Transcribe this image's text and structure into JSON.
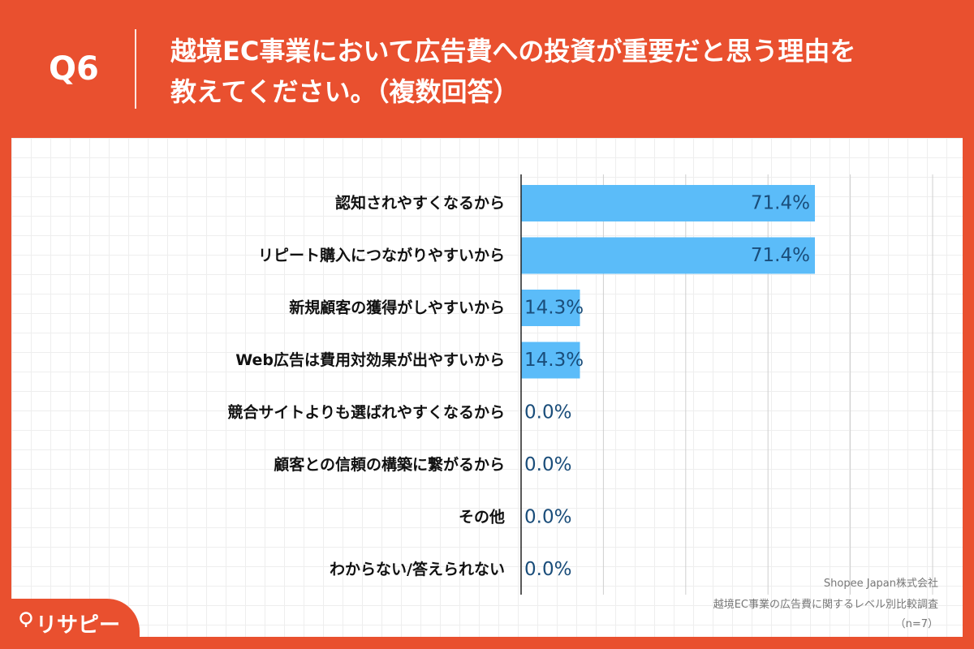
{
  "header": {
    "qnum": "Q6",
    "title_line1": "越境EC事業において広告費への投資が重要だと思う理由を",
    "title_line2": "教えてください。（複数回答）"
  },
  "footer": {
    "company": "Shopee Japan株式会社",
    "survey": "越境EC事業の広告費に関するレベル別比較調査",
    "n": "（n=7）"
  },
  "brand": {
    "name": "リサピー",
    "icon": "map-pin-icon"
  },
  "colors": {
    "accent": "#e9502f",
    "bar": "#5bbcf9",
    "label": "#1a4d7a"
  },
  "chart_data": {
    "type": "bar",
    "orientation": "horizontal",
    "categories": [
      "認知されやすくなるから",
      "リピート購入につながりやすいから",
      "新規顧客の獲得がしやすいから",
      "Web広告は費用対効果が出やすいから",
      "競合サイトよりも選ばれやすくなるから",
      "顧客との信頼の構築に繋がるから",
      "その他",
      "わからない/答えられない"
    ],
    "values": [
      71.4,
      71.4,
      14.3,
      14.3,
      0.0,
      0.0,
      0.0,
      0.0
    ],
    "value_labels": [
      "71.4%",
      "71.4%",
      "14.3%",
      "14.3%",
      "0.0%",
      "0.0%",
      "0.0%",
      "0.0%"
    ],
    "xlim": [
      0,
      100
    ],
    "grid": true
  }
}
